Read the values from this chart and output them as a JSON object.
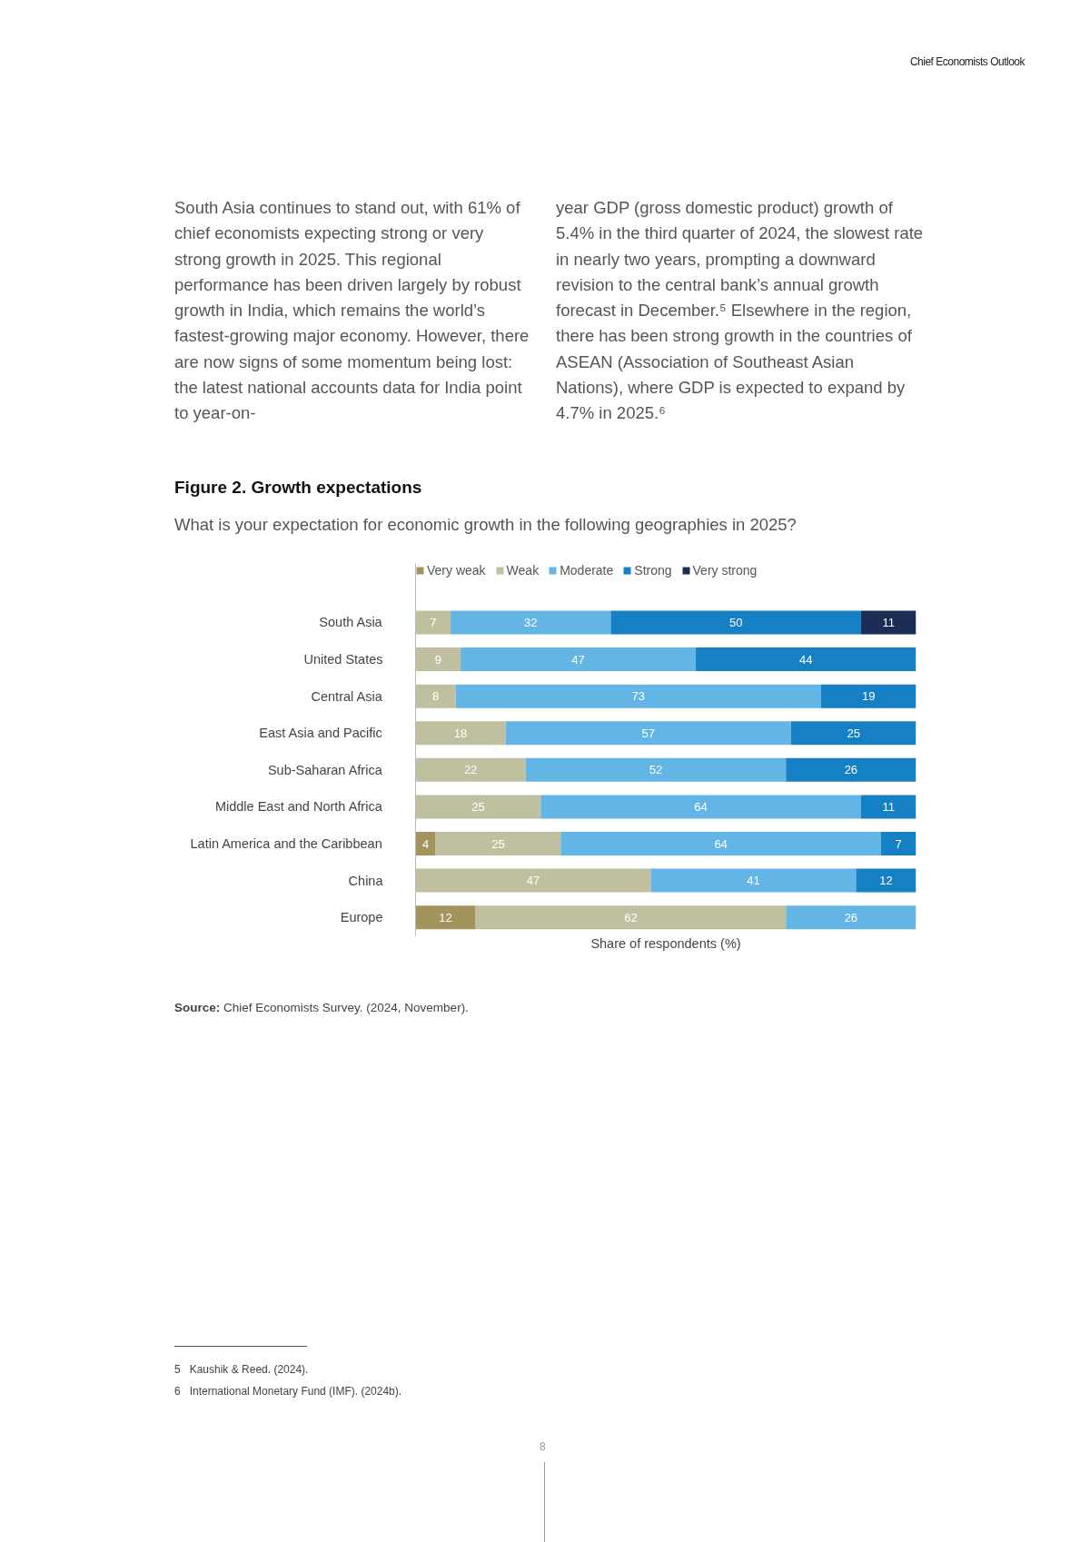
{
  "chart_data": {
    "type": "bar",
    "orientation": "horizontal",
    "stacked": true,
    "title": "Figure 2. Growth expectations",
    "subtitle": "What is your expectation for economic growth in the following geographies in 2025?",
    "xlabel": "Share of respondents (%)",
    "categories": [
      "South Asia",
      "United States",
      "Central Asia",
      "East Asia and Pacific",
      "Sub-Saharan Africa",
      "Middle East and North Africa",
      "Latin America and the Caribbean",
      "China",
      "Europe"
    ],
    "series": [
      {
        "name": "Very weak",
        "color": "#a3945e",
        "values": [
          null,
          null,
          null,
          null,
          null,
          null,
          4,
          null,
          12
        ]
      },
      {
        "name": "Weak",
        "color": "#c0bfa0",
        "values": [
          7,
          9,
          8,
          18,
          22,
          25,
          25,
          47,
          62
        ]
      },
      {
        "name": "Moderate",
        "color": "#63b5e6",
        "values": [
          32,
          47,
          73,
          57,
          52,
          64,
          64,
          41,
          26
        ]
      },
      {
        "name": "Strong",
        "color": "#1580c4",
        "values": [
          50,
          44,
          19,
          25,
          26,
          11,
          7,
          12,
          null
        ]
      },
      {
        "name": "Very strong",
        "color": "#1c2d55",
        "values": [
          11,
          null,
          null,
          null,
          null,
          null,
          null,
          null,
          null
        ]
      }
    ],
    "xlim": [
      0,
      100
    ],
    "tick_labels": "y",
    "grid": false,
    "legend": "top left",
    "data_labels": true,
    "annotations": [
      "Chief Economists Outlook",
      "South Asia continues to stand out, with 61% of chief economists expecting strong or very strong growth in 2025. This regional performance has been driven largely by robust growth in India, which remains the world’s fastest-growing major economy. However, there are now signs of some momentum being lost: the latest national accounts data for India point to year-on-",
      "year GDP (gross domestic product) growth of 5.4% in the third quarter of 2024, the slowest rate in nearly two years, prompting a downward revision to the central bank’s annual growth forecast in December.⁵ Elsewhere in the region, there has been strong growth in the countries of ASEAN (Association of Southeast Asian Nations), where GDP is expected to expand by 4.7% in 2025.⁶",
      "Source: Chief Economists Survey. (2024, November).",
      "5   Kaushik & Reed. (2024).",
      "6   International Monetary Fund (IMF). (2024b).",
      "8"
    ]
  }
}
